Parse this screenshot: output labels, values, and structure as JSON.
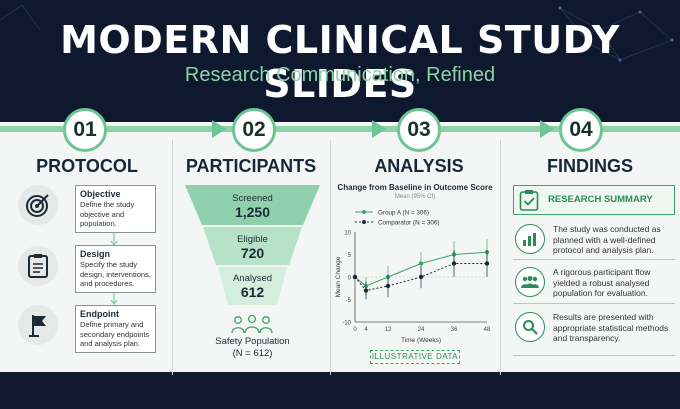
{
  "header": {
    "title": "MODERN CLINICAL STUDY SLIDES",
    "subtitle": "Research Communication, Refined"
  },
  "steps": [
    {
      "number": "01",
      "title": "PROTOCOL"
    },
    {
      "number": "02",
      "title": "PARTICIPANTS"
    },
    {
      "number": "03",
      "title": "ANALYSIS"
    },
    {
      "number": "04",
      "title": "FINDINGS"
    }
  ],
  "protocol": [
    {
      "title": "Objective",
      "text": "Define the study objective and population.",
      "icon": "target-icon"
    },
    {
      "title": "Design",
      "text": "Specify the study design, interventions, and procedures.",
      "icon": "clipboard-icon"
    },
    {
      "title": "Endpoint",
      "text": "Define primary and secondary endpoints and analysis plan.",
      "icon": "flag-icon"
    }
  ],
  "participants": {
    "stages": [
      {
        "label": "Screened",
        "value": "1,250"
      },
      {
        "label": "Eligible",
        "value": "720"
      },
      {
        "label": "Analysed",
        "value": "612"
      }
    ],
    "population_label": "Safety Population",
    "population_n": "(N = 612)"
  },
  "chart_data": {
    "type": "line",
    "title": "Change from Baseline in Outcome Score",
    "subtitle": "Mean (95% CI)",
    "xlabel": "Time (Weeks)",
    "ylabel": "Mean Change",
    "x": [
      0,
      4,
      12,
      24,
      36,
      48
    ],
    "xlim": [
      0,
      48
    ],
    "ylim": [
      -10,
      10
    ],
    "yticks": [
      10,
      5,
      0,
      -5,
      -10
    ],
    "series": [
      {
        "name": "Group A  (N = 306)",
        "values": [
          0,
          -2,
          0,
          3,
          5,
          5.5
        ],
        "color": "#3fa56b"
      },
      {
        "name": "Comparator  (N = 306)",
        "values": [
          0,
          -3,
          -2,
          0,
          3,
          3
        ],
        "color": "#1a2a38"
      }
    ],
    "note": "ILLUSTRATIVE DATA"
  },
  "findings": {
    "summary_title": "RESEARCH SUMMARY",
    "items": [
      {
        "text": "The study was conducted as planned with a well-defined protocol and analysis plan.",
        "icon": "bar-chart-icon"
      },
      {
        "text": "A rigorous participant flow yielded a robust analysed population for evaluation.",
        "icon": "people-icon"
      },
      {
        "text": "Results are presented with appropriate statistical methods and transparency.",
        "icon": "magnifier-icon"
      }
    ]
  },
  "colors": {
    "accent": "#6cc592",
    "dark": "#0e1930"
  }
}
